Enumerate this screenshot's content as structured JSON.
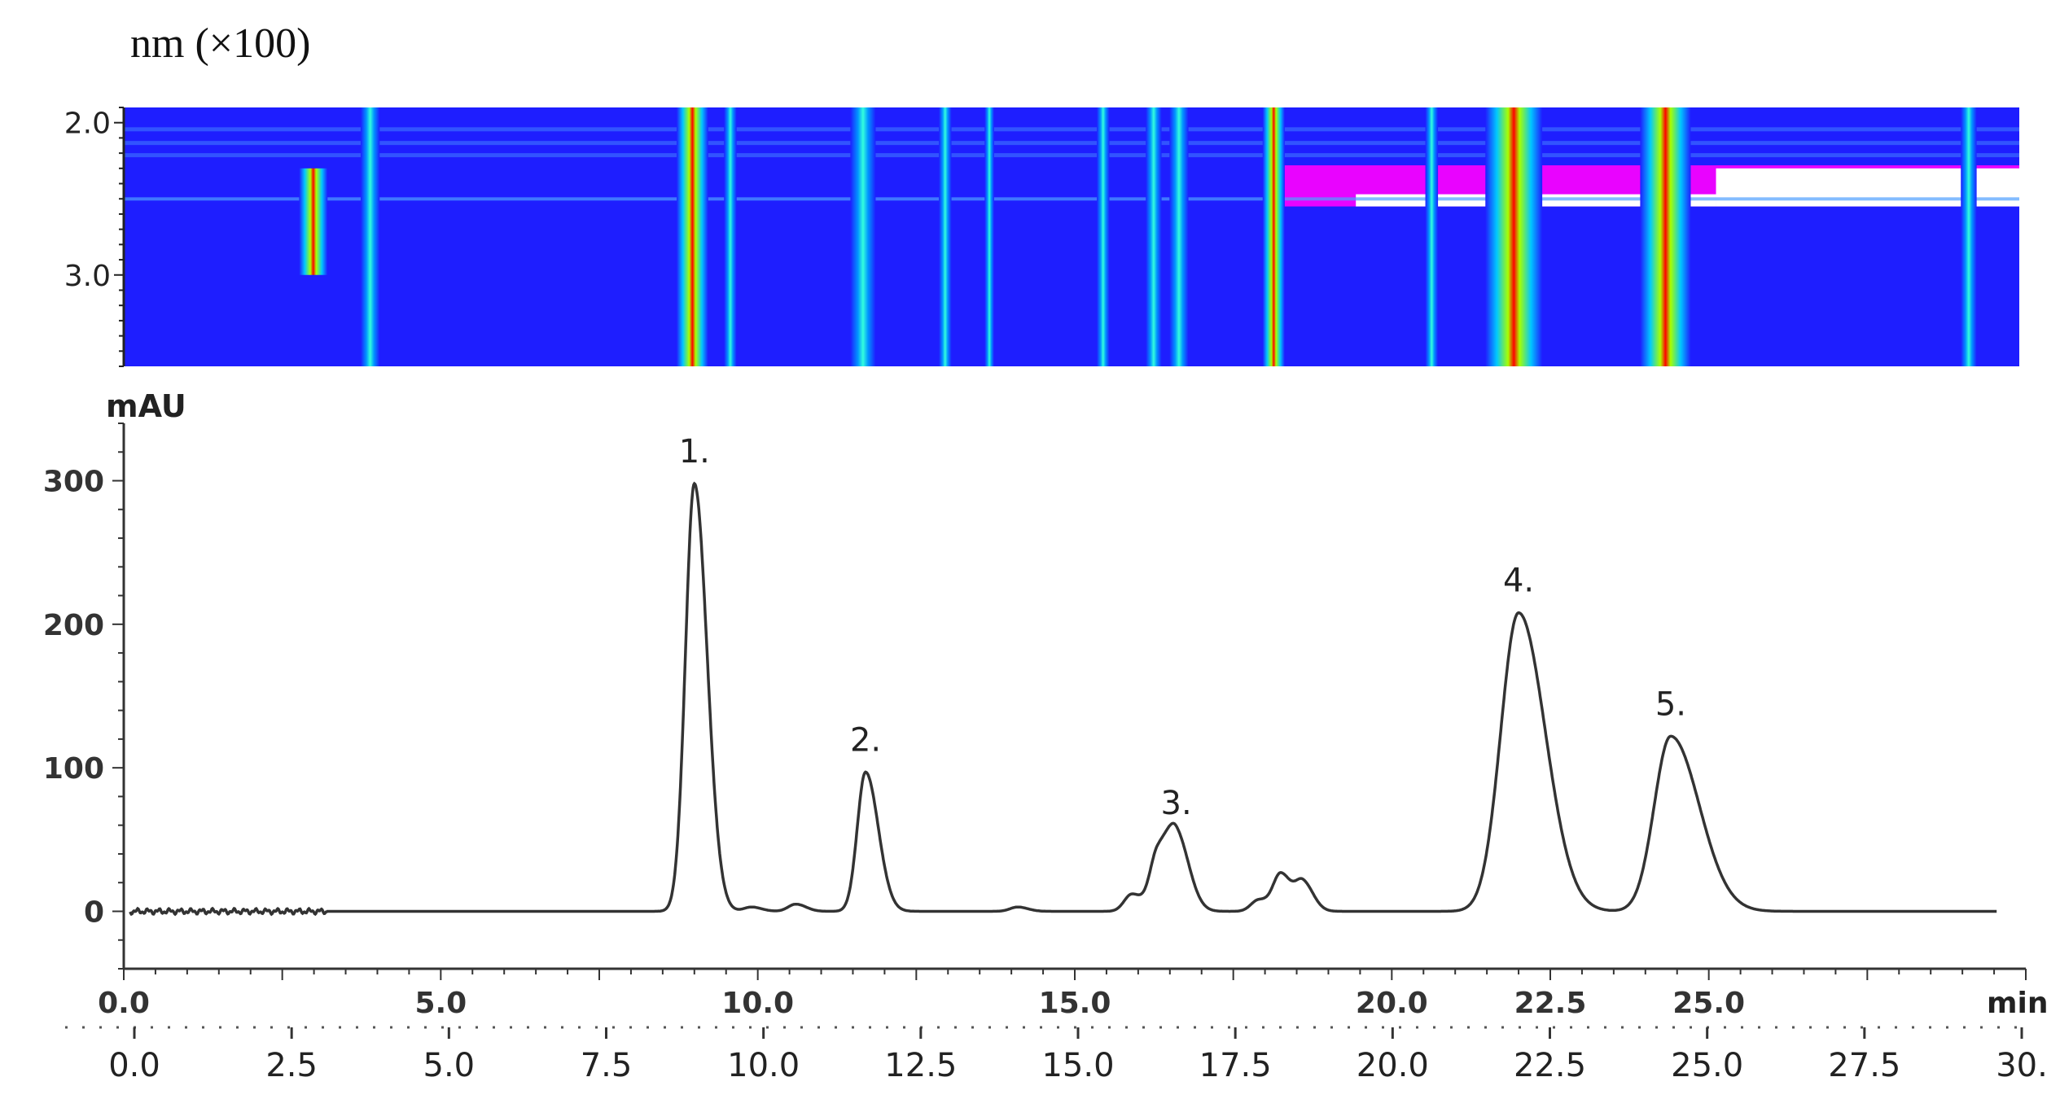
{
  "heatmap": {
    "unit_label": "nm (×100)",
    "yticks": [
      {
        "value": 2.0,
        "label": "2.0"
      },
      {
        "value": 3.0,
        "label": "3.0"
      }
    ],
    "ylim": [
      1.9,
      3.6
    ],
    "xlim": [
      0,
      30
    ],
    "colors": {
      "background": "#1e1eff",
      "hot": "#ff0000",
      "saturated": "#ffffff",
      "edge": "#ff00ff"
    }
  },
  "chart_data": {
    "type": "line",
    "ylabel": "mAU",
    "xlabel": "min",
    "xlim": [
      0,
      30
    ],
    "ylim": [
      -40,
      340
    ],
    "xticks": [
      {
        "value": 0,
        "label": "0.0"
      },
      {
        "value": 5,
        "label": "5.0"
      },
      {
        "value": 10,
        "label": "10.0"
      },
      {
        "value": 15,
        "label": "15.0"
      },
      {
        "value": 20,
        "label": "20.0"
      },
      {
        "value": 22.5,
        "label": "22.5"
      },
      {
        "value": 25,
        "label": "25.0"
      }
    ],
    "yticks": [
      {
        "value": 0,
        "label": "0"
      },
      {
        "value": 100,
        "label": "100"
      },
      {
        "value": 200,
        "label": "200"
      },
      {
        "value": 300,
        "label": "300"
      }
    ],
    "bottom_axis_ticks": [
      "0.0",
      "2.5",
      "5.0",
      "7.5",
      "10.0",
      "12.5",
      "15.0",
      "17.5",
      "20.0",
      "22.5",
      "25.0",
      "27.5",
      "30."
    ],
    "peaks": [
      {
        "label": "1.",
        "x": 9.0,
        "y": 298
      },
      {
        "label": "2.",
        "x": 11.7,
        "y": 97
      },
      {
        "label": "3.",
        "x": 16.6,
        "y": 53
      },
      {
        "label": "4.",
        "x": 22.0,
        "y": 208
      },
      {
        "label": "5.",
        "x": 24.4,
        "y": 122
      }
    ],
    "minor_peaks": [
      {
        "x": 15.9,
        "y": 12
      },
      {
        "x": 16.3,
        "y": 38
      },
      {
        "x": 17.9,
        "y": 8
      },
      {
        "x": 18.25,
        "y": 26
      },
      {
        "x": 18.6,
        "y": 20
      },
      {
        "x": 9.9,
        "y": 3
      },
      {
        "x": 10.6,
        "y": 5
      },
      {
        "x": 14.1,
        "y": 3
      }
    ],
    "line_color": "#333333"
  }
}
